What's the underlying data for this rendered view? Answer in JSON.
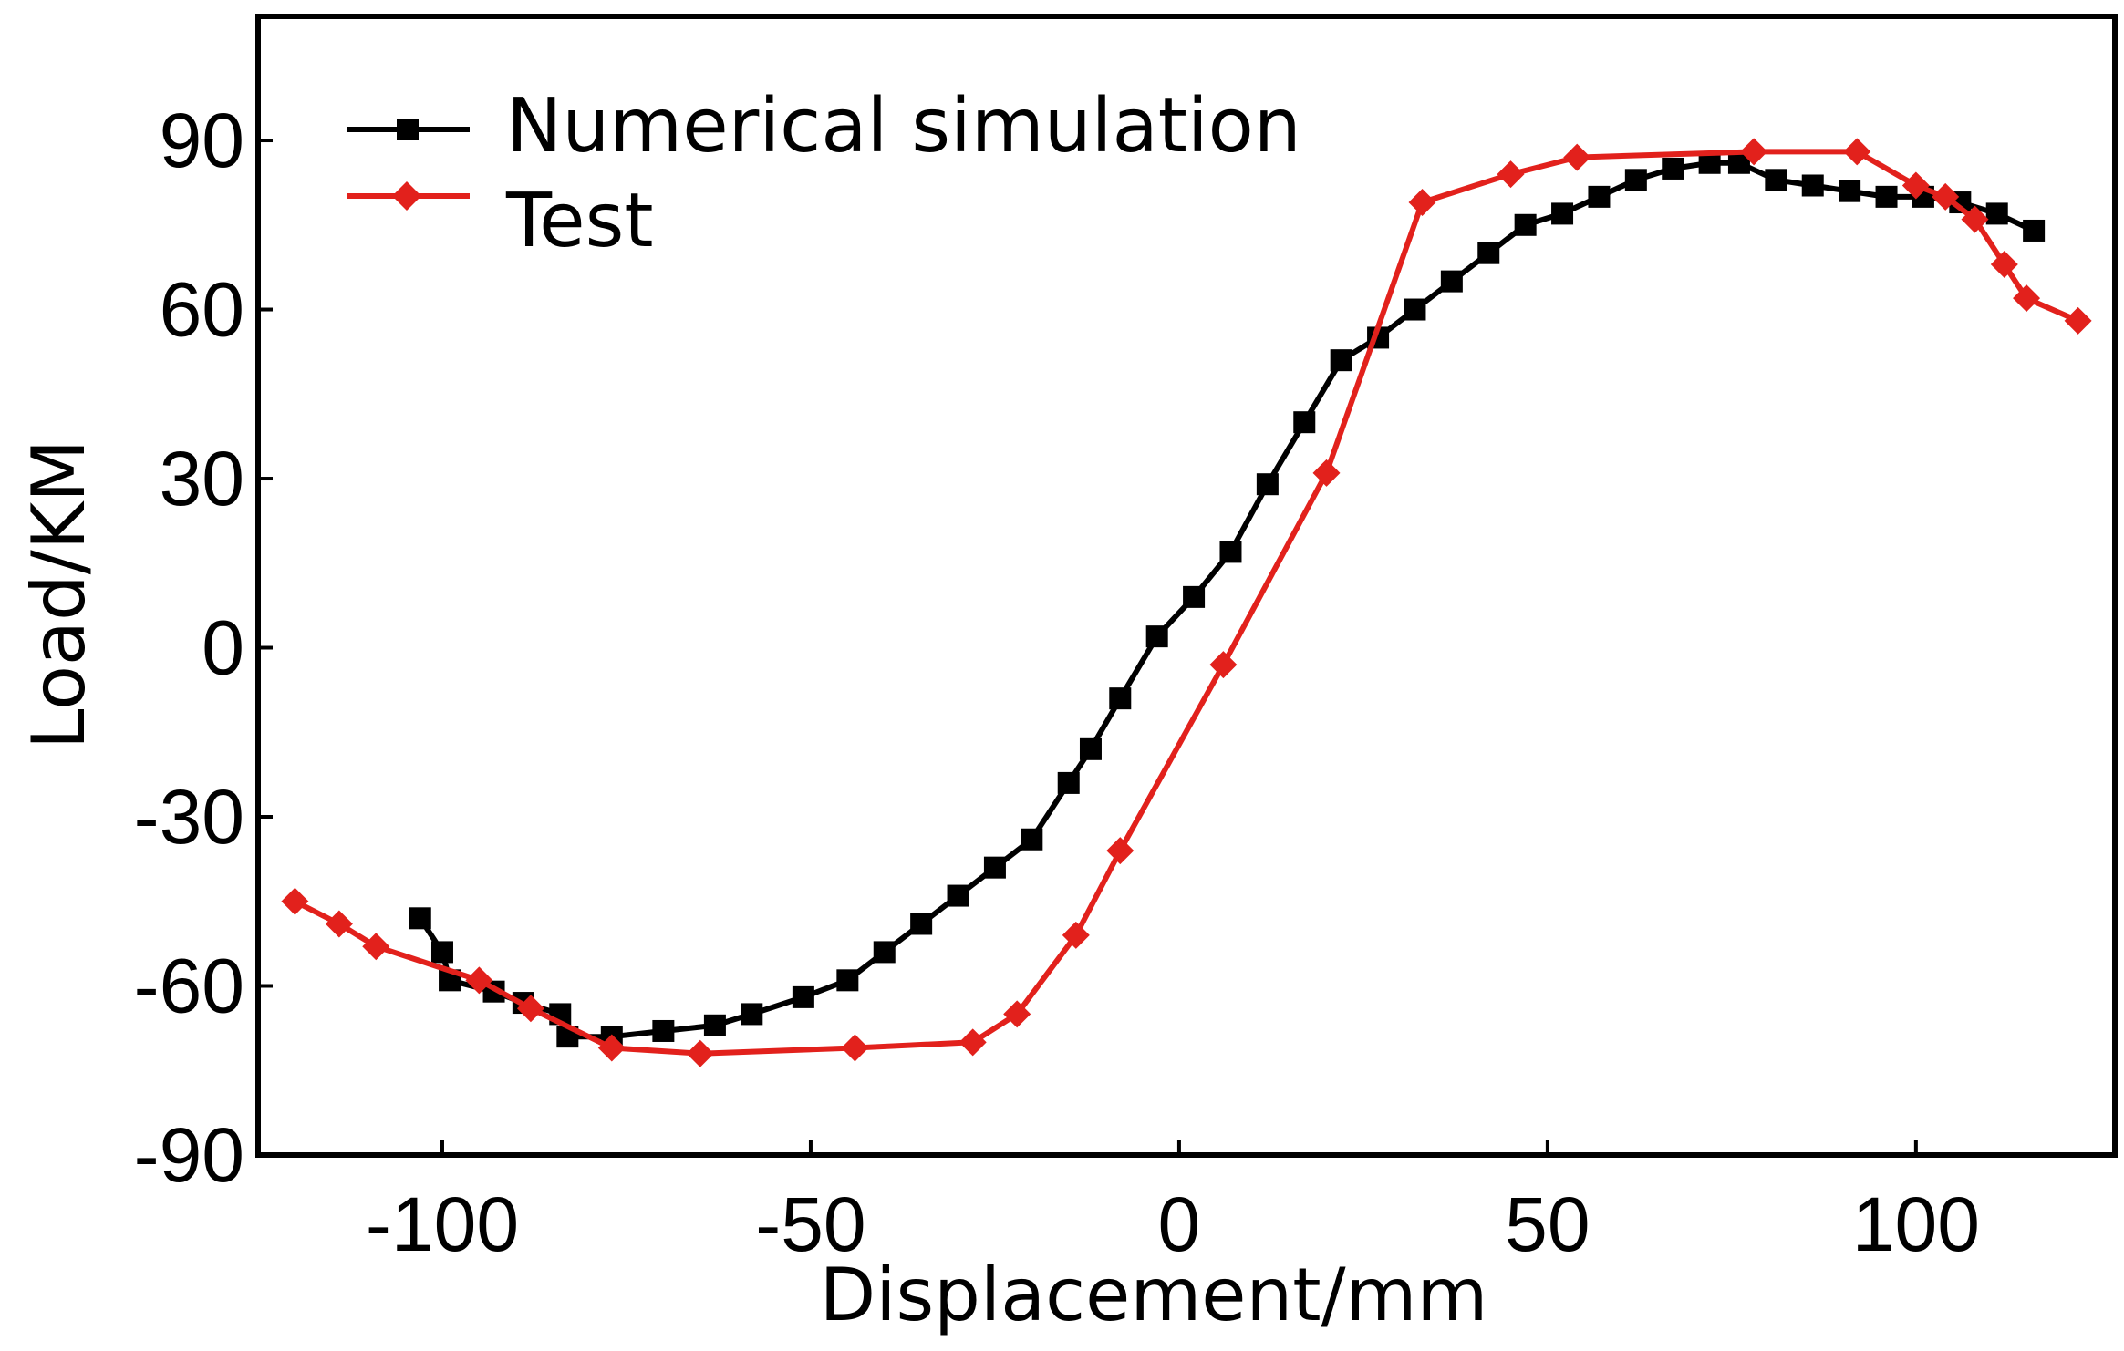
{
  "chart_data": {
    "type": "line",
    "title": "",
    "xlabel": "Displacement/mm",
    "ylabel": "Load/KM",
    "xlim": [
      -125,
      127
    ],
    "ylim": [
      -90,
      112
    ],
    "xticks": [
      "-100",
      "-50",
      "0",
      "50",
      "100"
    ],
    "yticks": [
      "-90",
      "-60",
      "-30",
      "0",
      "30",
      "60",
      "90"
    ],
    "grid": false,
    "legend_position": "top-left",
    "series": [
      {
        "name": "Numerical simulation",
        "color": "#000000",
        "marker": "square",
        "x": [
          -103,
          -100,
          -99,
          -93,
          -89,
          -84,
          -83,
          -77,
          -70,
          -63,
          -58,
          -51,
          -45,
          -40,
          -35,
          -30,
          -25,
          -20,
          -15,
          -12,
          -8,
          -3,
          2,
          7,
          12,
          17,
          22,
          27,
          32,
          37,
          42,
          47,
          52,
          57,
          62,
          67,
          72,
          76,
          81,
          86,
          91,
          96,
          101,
          106,
          111,
          116
        ],
        "y": [
          -48,
          -54,
          -59,
          -61,
          -63,
          -65,
          -69,
          -69,
          -68,
          -67,
          -65,
          -62,
          -59,
          -54,
          -49,
          -44,
          -39,
          -34,
          -24,
          -18,
          -9,
          2,
          9,
          17,
          29,
          40,
          51,
          55,
          60,
          65,
          70,
          75,
          77,
          80,
          83,
          85,
          86,
          86,
          83,
          82,
          81,
          80,
          80,
          79,
          77,
          74
        ]
      },
      {
        "name": "Test",
        "color": "#e2211c",
        "marker": "diamond",
        "x": [
          -120,
          -114,
          -109,
          -95,
          -88,
          -77,
          -65,
          -44,
          -28,
          -22,
          -14,
          -8,
          6,
          20,
          33,
          45,
          54,
          78,
          92,
          100,
          104,
          108,
          112,
          115,
          122
        ],
        "y": [
          -45,
          -49,
          -53,
          -59,
          -64,
          -71,
          -72,
          -71,
          -70,
          -65,
          -51,
          -36,
          -3,
          31,
          79,
          84,
          87,
          88,
          88,
          82,
          80,
          76,
          68,
          62,
          58
        ]
      }
    ]
  }
}
